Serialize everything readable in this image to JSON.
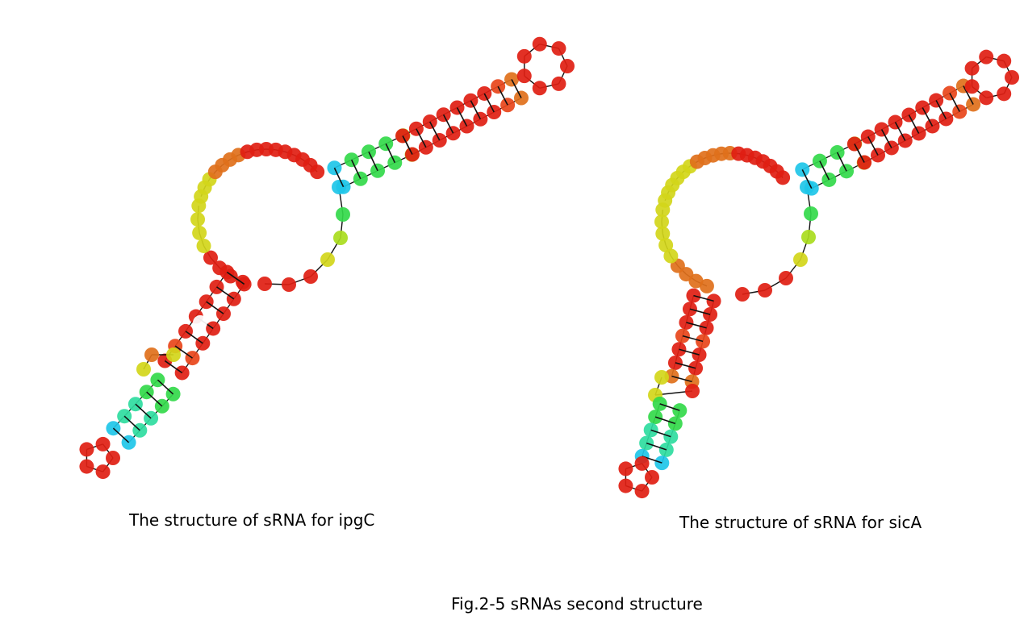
{
  "captions": {
    "left": "The structure of sRNA for ipgC",
    "right": "The structure of sRNA for sicA",
    "figure": "Fig.2-5  sRNAs second structure"
  },
  "colors": {
    "red": "#e01e12",
    "red_orange": "#e8451a",
    "orange": "#e0701b",
    "yellow": "#d3d61a",
    "yellow_green": "#a9dc1d",
    "green": "#33d94a",
    "teal": "#2fdca0",
    "cyan": "#1ec6e8",
    "backbone": "#111111"
  },
  "structures": [
    {
      "label": "ipgC",
      "hairpin_top": "long red/orange stem ending in a loop at upper right",
      "hairpin_bottom": "stem with green and cyan segments ending in a small loop at lower left"
    },
    {
      "label": "sicA",
      "hairpin_top": "long red stem ending in a loop at upper right",
      "hairpin_bottom": "stem with red, yellow, green and teal segments ending in a small loop at lower left"
    }
  ]
}
